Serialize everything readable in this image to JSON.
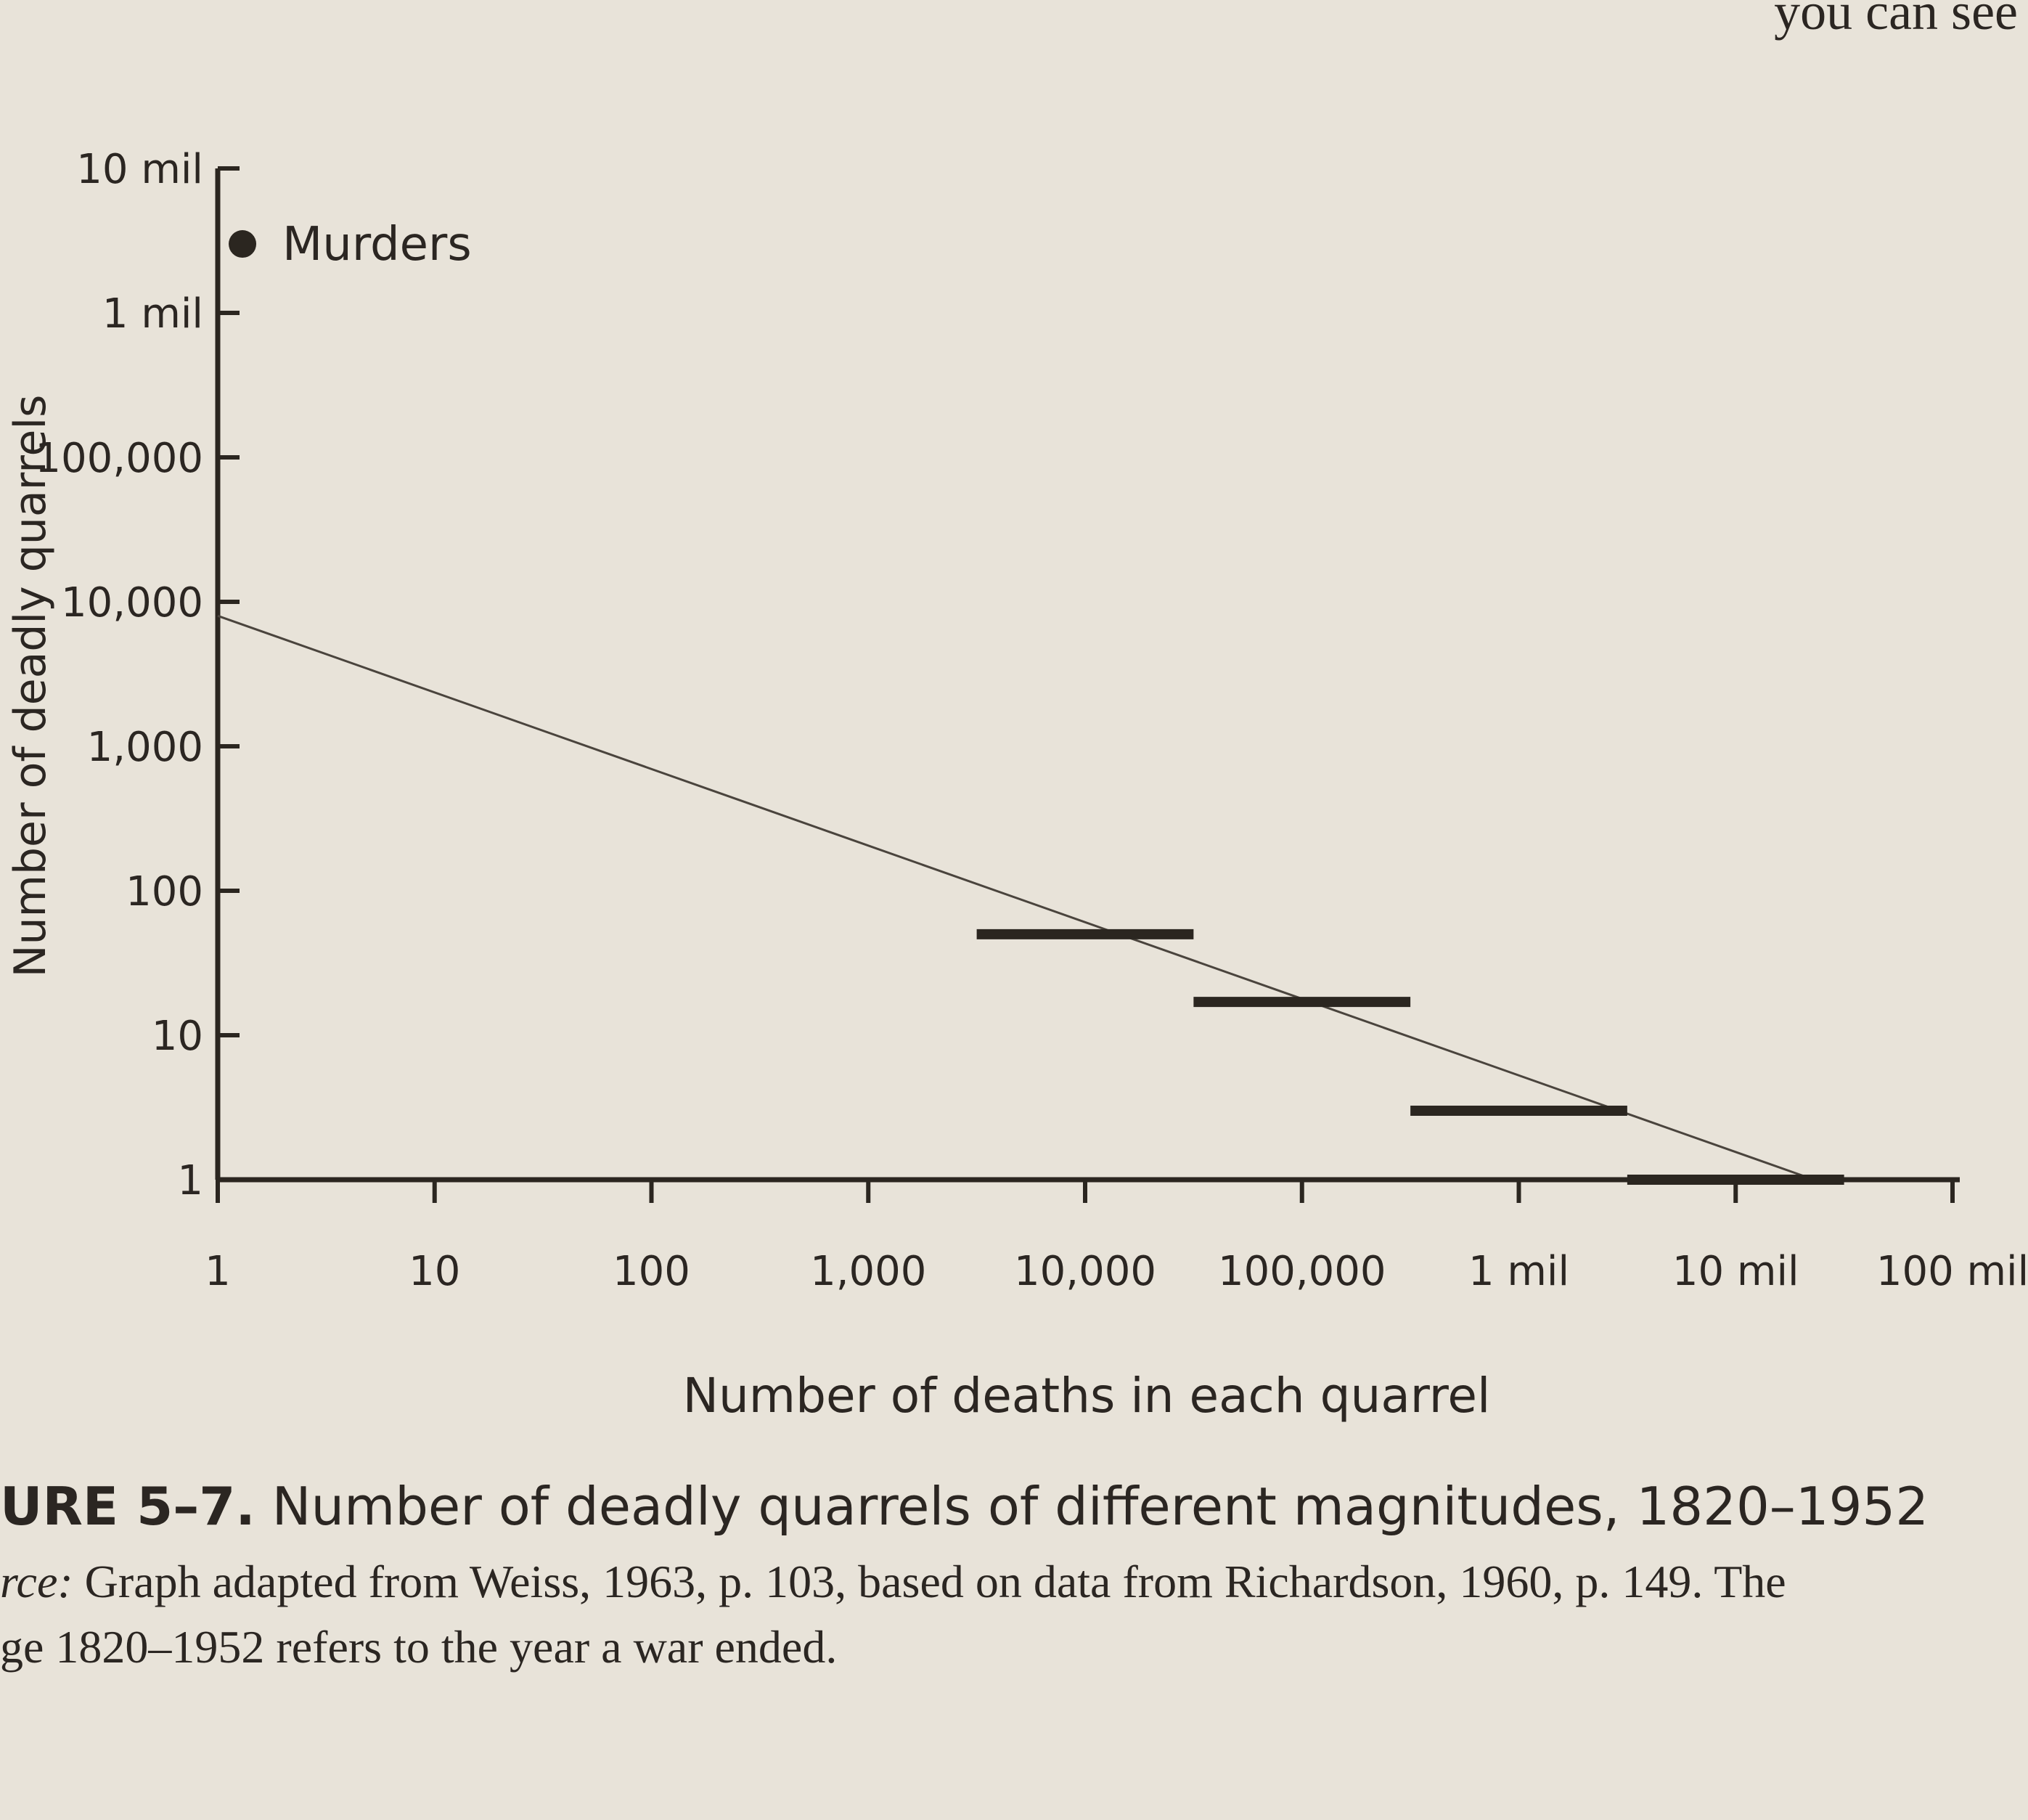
{
  "chart_data": {
    "type": "histogram",
    "page_text": "you can see",
    "figure_label": "URE 5–7.",
    "title": "Number of deadly quarrels of different magnitudes, 1820–1952",
    "source_label": "rce:",
    "source_lines": [
      "Graph adapted from Weiss, 1963, p. 103, based on data from Richardson, 1960, p. 149. The",
      "ge 1820–1952 refers to the year a war ended."
    ],
    "x_label": "Number of deaths in each quarrel",
    "y_label": "Number of deadly quarrels",
    "xscale": "log",
    "yscale": "log",
    "xlim": [
      1,
      100000000
    ],
    "ylim": [
      1,
      10000000
    ],
    "xticks": [
      1,
      10,
      100,
      {
        "value": 1000,
        "label": "1,000"
      },
      {
        "value": 10000,
        "label": "10,000"
      },
      {
        "value": 100000,
        "label": "100,000"
      },
      {
        "value": 1000000,
        "label": "1 mil"
      },
      {
        "value": 10000000,
        "label": "10 mil"
      },
      {
        "value": 100000000,
        "label": "100 mil"
      }
    ],
    "yticks": [
      1,
      10,
      100,
      {
        "value": 1000,
        "label": "1,000"
      },
      {
        "value": 10000,
        "label": "10,000"
      },
      {
        "value": 100000,
        "label": "100,000"
      },
      {
        "value": 1000000,
        "label": "1 mil"
      },
      {
        "value": 10000000,
        "label": "10 mil"
      }
    ],
    "bins": [
      3162,
      31623,
      316228,
      3162278,
      31622777
    ],
    "values": [
      50,
      17,
      3,
      1
    ],
    "color": "#2b2620",
    "point": {
      "name": "Murders",
      "x": 1.3,
      "y": 3000000
    },
    "fit": {
      "x": [
        1,
        23000000
      ],
      "values": [
        8000,
        1
      ]
    }
  }
}
